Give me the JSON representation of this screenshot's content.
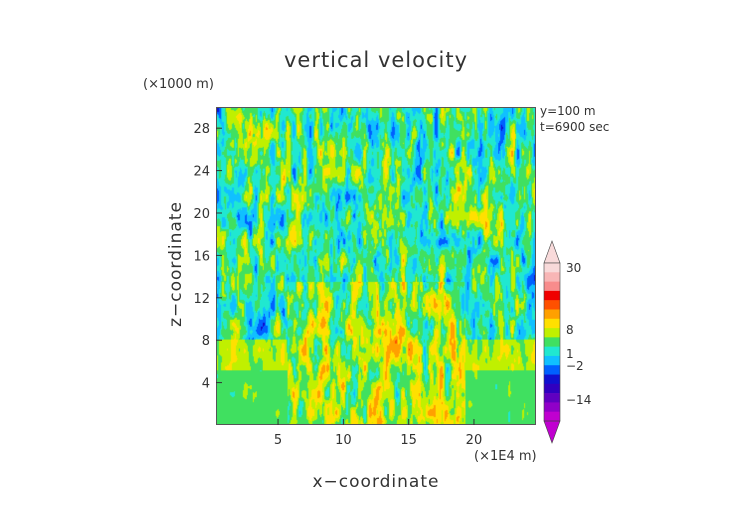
{
  "chart_data": {
    "type": "heatmap",
    "title": "vertical velocity",
    "xlabel": "x−coordinate",
    "ylabel": "z−coordinate",
    "x_unit": "(×1E4 m)",
    "y_unit": "(×1000 m)",
    "x_ticks": [
      5,
      10,
      15,
      20
    ],
    "y_ticks": [
      4,
      8,
      12,
      16,
      20,
      24,
      28
    ],
    "xlim": [
      0.25,
      24.75
    ],
    "ylim": [
      0,
      30
    ],
    "annotations": [
      "y=100 m",
      "t=6900 sec"
    ],
    "colorbar": {
      "tick_labels": [
        "30",
        "8",
        "1",
        "−2",
        "−14"
      ],
      "tick_values": [
        30,
        8,
        1,
        -2,
        -14
      ],
      "colors": [
        "#f8dada",
        "#f8b6b6",
        "#f88c8c",
        "#f00000",
        "#ff5000",
        "#ffa000",
        "#ffe000",
        "#c0f000",
        "#40e060",
        "#20e8d0",
        "#10c0ff",
        "#0060ff",
        "#1010d0",
        "#3000c0",
        "#6000c0",
        "#9000c8",
        "#c000d0"
      ]
    }
  }
}
